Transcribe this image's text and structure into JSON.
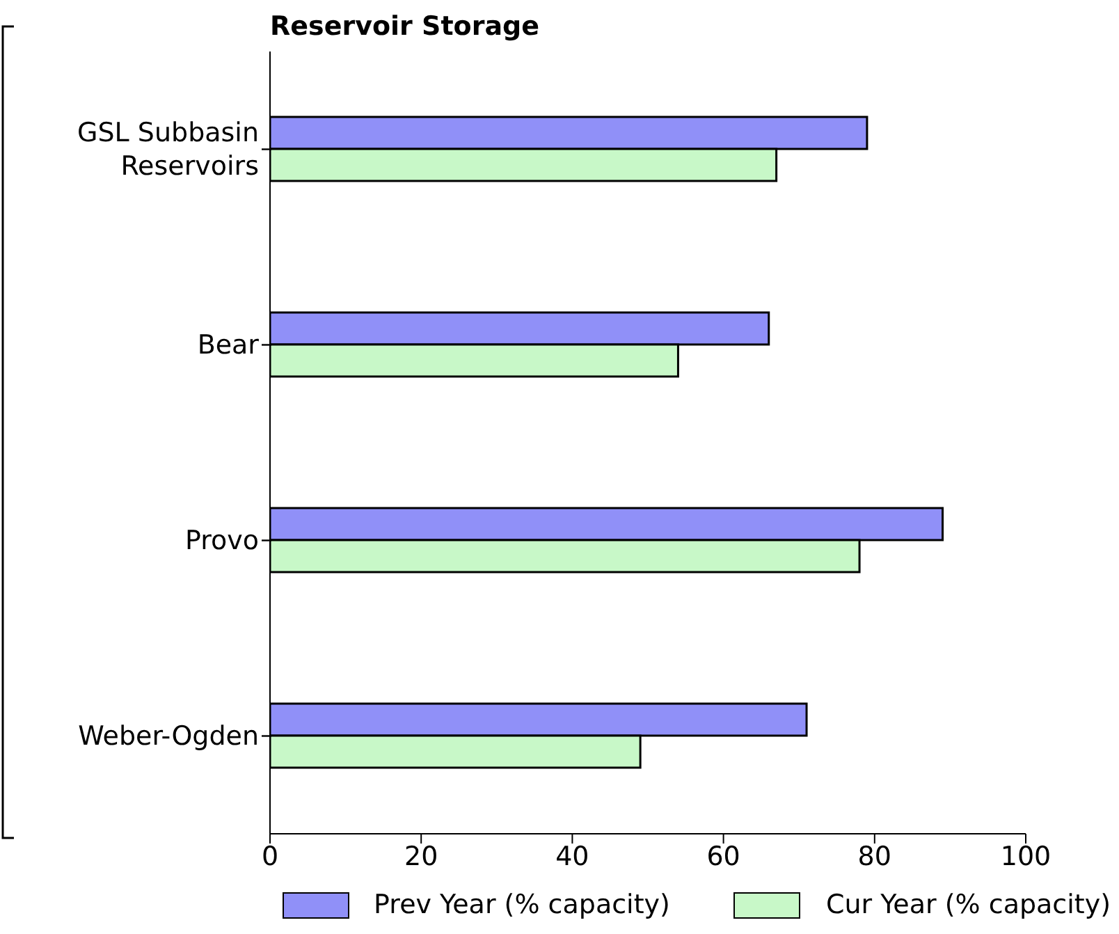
{
  "chart_data": {
    "type": "bar",
    "orientation": "horizontal",
    "title": "Reservoir Storage",
    "categories": [
      "GSL Subbasin Reservoirs",
      "Bear",
      "Provo",
      "Weber-Ogden"
    ],
    "series": [
      {
        "name": "Prev Year (% capacity)",
        "color": "#9090f8",
        "values": [
          79,
          66,
          89,
          71
        ]
      },
      {
        "name": "Cur Year (% capacity)",
        "color": "#c8f8c8",
        "values": [
          67,
          54,
          78,
          49
        ]
      }
    ],
    "xlim": [
      0,
      100
    ],
    "xticks": [
      0,
      20,
      40,
      60,
      80,
      100
    ],
    "grid": false,
    "legend": "bottom"
  }
}
